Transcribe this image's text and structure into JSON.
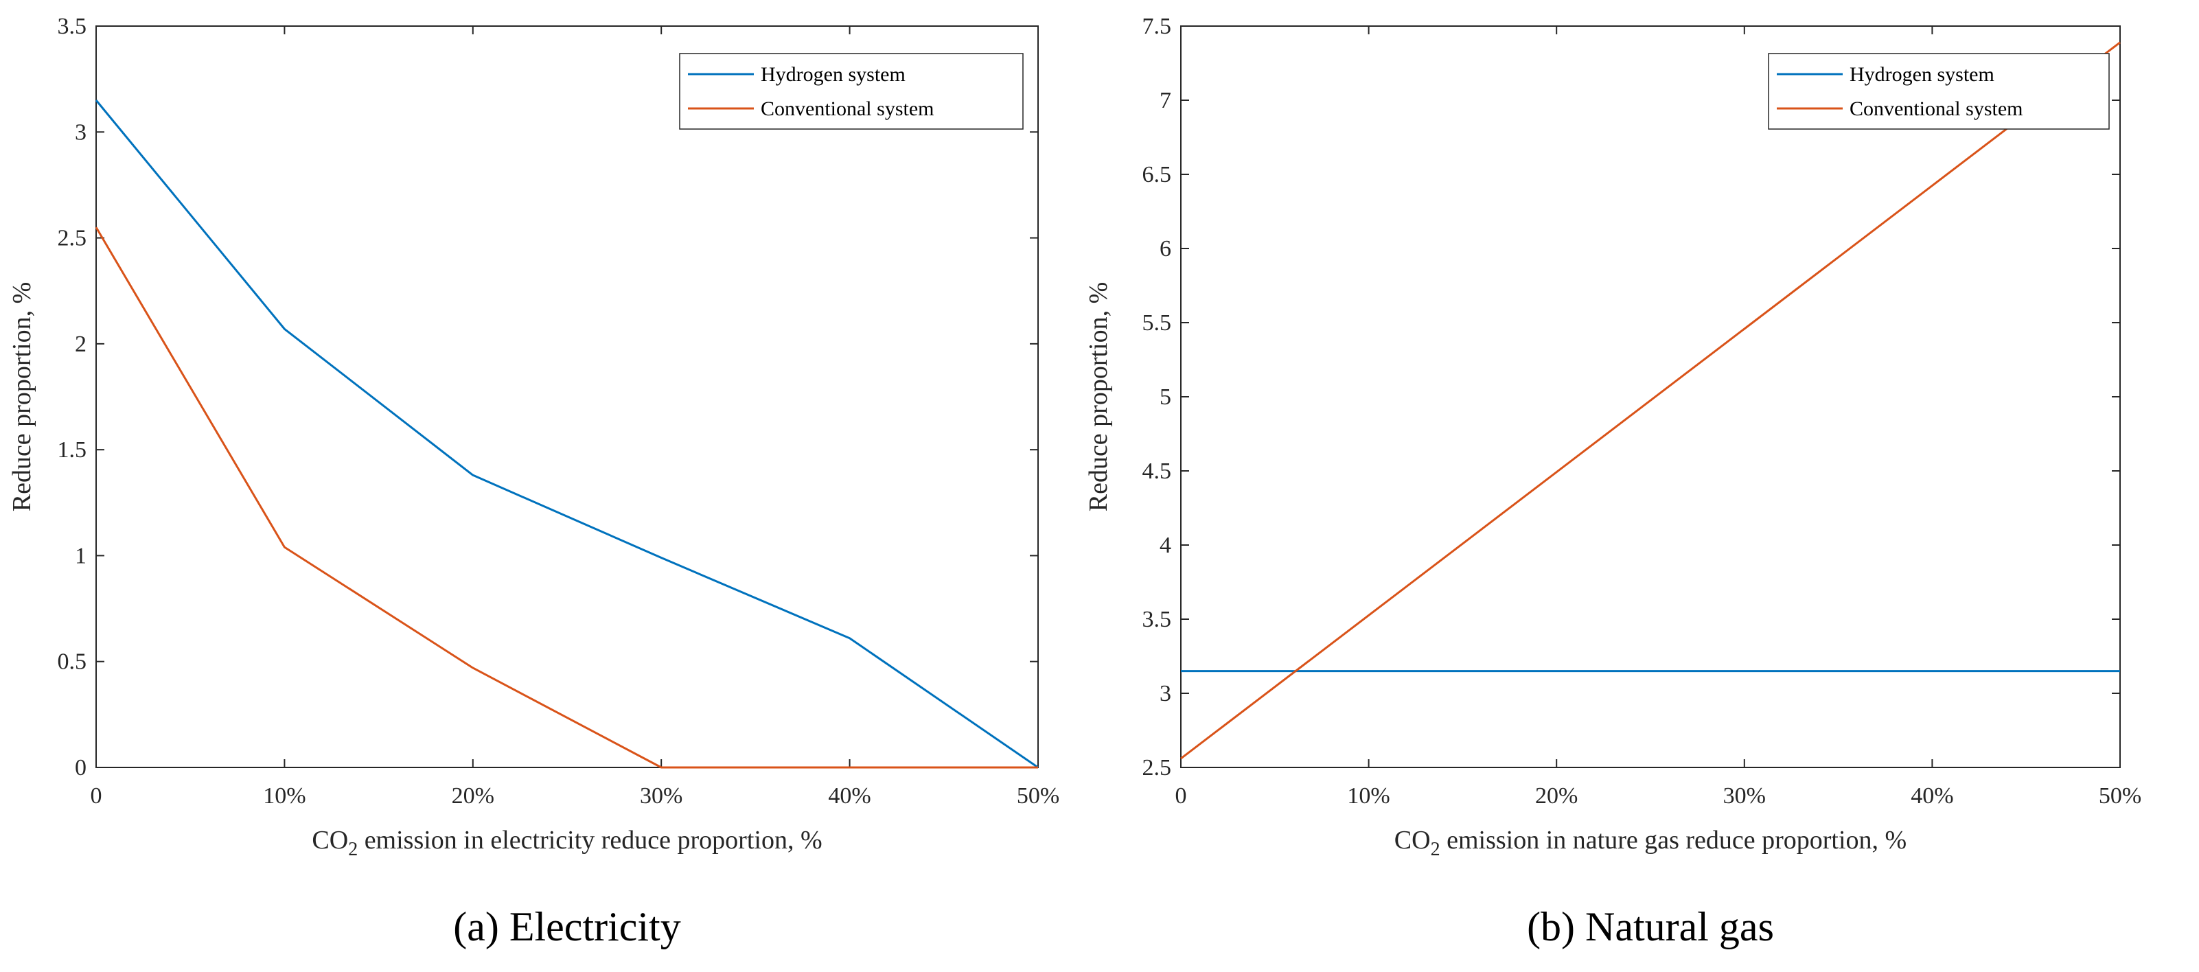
{
  "chart_data": [
    {
      "type": "line",
      "caption": "(a) Electricity",
      "xlabel_pre": "CO",
      "xlabel_sub": "2",
      "xlabel_post": " emission in electricity reduce proportion, %",
      "ylabel": "Reduce proportion, %",
      "categories": [
        "0",
        "10%",
        "20%",
        "30%",
        "40%",
        "50%"
      ],
      "x": [
        0,
        10,
        20,
        30,
        40,
        50
      ],
      "xlim": [
        0,
        50
      ],
      "ylim": [
        0,
        3.5
      ],
      "yticks": [
        "0",
        "0.5",
        "1",
        "1.5",
        "2",
        "2.5",
        "3",
        "3.5"
      ],
      "legend_position": "top-right",
      "series": [
        {
          "name": "Hydrogen system",
          "color": "#0072BD",
          "x": [
            0,
            10,
            20,
            30,
            40,
            50
          ],
          "values": [
            3.15,
            2.07,
            1.38,
            0.99,
            0.61,
            0.0
          ]
        },
        {
          "name": "Conventional system",
          "color": "#D95319",
          "x": [
            0,
            10,
            20,
            30,
            40,
            50
          ],
          "values": [
            2.55,
            1.04,
            0.47,
            0.0,
            0.0,
            0.0
          ]
        }
      ]
    },
    {
      "type": "line",
      "caption": "(b) Natural gas",
      "xlabel_pre": "CO",
      "xlabel_sub": "2",
      "xlabel_post": " emission in nature gas reduce proportion, %",
      "ylabel": "Reduce proportion, %",
      "categories": [
        "0",
        "10%",
        "20%",
        "30%",
        "40%",
        "50%"
      ],
      "x": [
        0,
        10,
        20,
        30,
        40,
        50
      ],
      "xlim": [
        0,
        50
      ],
      "ylim": [
        2.5,
        7.5
      ],
      "yticks": [
        "2.5",
        "3",
        "3.5",
        "4",
        "4.5",
        "5",
        "5.5",
        "6",
        "6.5",
        "7",
        "7.5"
      ],
      "legend_position": "top-right",
      "series": [
        {
          "name": "Hydrogen system",
          "color": "#0072BD",
          "x": [
            0,
            50
          ],
          "values": [
            3.15,
            3.15
          ]
        },
        {
          "name": "Conventional system",
          "color": "#D95319",
          "x": [
            0,
            50
          ],
          "values": [
            2.56,
            7.39
          ]
        }
      ]
    }
  ]
}
